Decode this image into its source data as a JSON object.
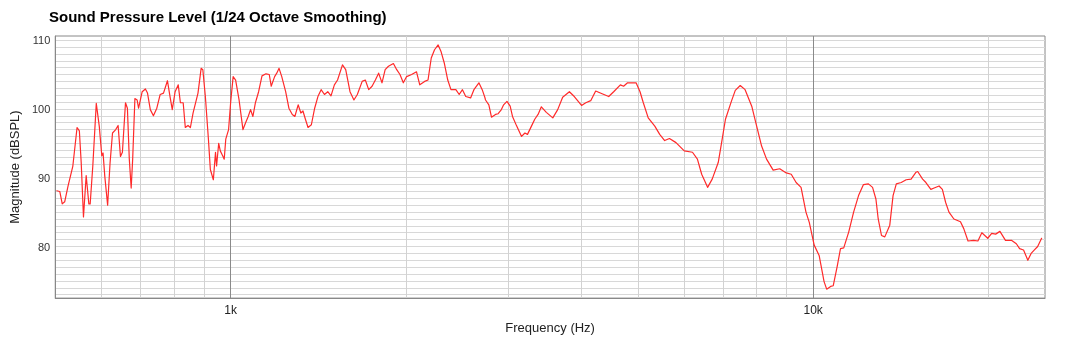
{
  "chart_data": {
    "type": "line",
    "title": "Sound Pressure Level (1/24 Octave Smoothing)",
    "xlabel": "Frequency (Hz)",
    "ylabel": "Magnitude (dBSPL)",
    "x": [
      503,
      509,
      514,
      519,
      526,
      536,
      545,
      550,
      554,
      559,
      565,
      571,
      574,
      580,
      588,
      595,
      601,
      604,
      608,
      615,
      621,
      627,
      635,
      641,
      647,
      652,
      660,
      665,
      670,
      675,
      679,
      685,
      691,
      695,
      705,
      714,
      720,
      728,
      737,
      747,
      757,
      767,
      779,
      787,
      794,
      803,
      813,
      820,
      829,
      836,
      845,
      853,
      862,
      879,
      890,
      896,
      905,
      916,
      923,
      934,
      942,
      946,
      954,
      960,
      969,
      975,
      981,
      992,
      1000,
      1010,
      1020,
      1034,
      1050,
      1061,
      1072,
      1082,
      1092,
      1103,
      1117,
      1132,
      1150,
      1165,
      1174,
      1190,
      1200,
      1211,
      1224,
      1243,
      1259,
      1276,
      1289,
      1306,
      1320,
      1331,
      1344,
      1358,
      1376,
      1394,
      1412,
      1430,
      1449,
      1468,
      1487,
      1507,
      1526,
      1556,
      1576,
      1603,
      1628,
      1650,
      1682,
      1703,
      1726,
      1749,
      1772,
      1795,
      1819,
      1842,
      1866,
      1903,
      1928,
      1953,
      1979,
      2005,
      2045,
      2085,
      2112,
      2153,
      2182,
      2210,
      2239,
      2271,
      2298,
      2328,
      2359,
      2389,
      2436,
      2468,
      2500,
      2533,
      2582,
      2616,
      2668,
      2703,
      2731,
      2739,
      2775,
      2804,
      2849,
      2879,
      2916,
      2942,
      2981,
      3019,
      3047,
      3098,
      3158,
      3200,
      3233,
      3284,
      3327,
      3371,
      3415,
      3483,
      3573,
      3643,
      3715,
      3815,
      3890,
      4003,
      4071,
      4151,
      4233,
      4342,
      4457,
      4545,
      4667,
      4727,
      4801,
      4966,
      5044,
      5110,
      5210,
      5347,
      5452,
      5560,
      5666,
      5815,
      6008,
      6206,
      6328,
      6436,
      6588,
      6709,
      6871,
      6979,
      7070,
      7237,
      7350,
      7495,
      7641,
      7844,
      7998,
      8156,
      8317,
      8537,
      8762,
      8992,
      9169,
      9348,
      9532,
      9719,
      9847,
      10040,
      10238,
      10440,
      10548,
      10714,
      10826,
      10996,
      11140,
      11284,
      11507,
      11733,
      11964,
      12199,
      12440,
      12646,
      12814,
      12931,
      13100,
      13272,
      13536,
      13713,
      13890,
      14163,
      14442,
      14727,
      15017,
      15115,
      15412,
      15614,
      15922,
      16130,
      16448,
      16663,
      16882,
      17103,
      17440,
      17899,
      18133,
      18442,
      18854,
      19175,
      19477,
      19937,
      20251,
      20569,
      20920,
      21386,
      21892,
      22323,
      22612,
      22968,
      23360,
      23666,
      23976,
      24285,
      24667
    ],
    "series": [
      {
        "color": "#ff2a2a",
        "values": [
          88.1,
          88.0,
          86.2,
          86.5,
          88.8,
          91.7,
          97.3,
          96.8,
          92.2,
          84.3,
          90.3,
          86.2,
          86.2,
          91.7,
          100.8,
          97.5,
          93.2,
          93.6,
          90.3,
          86.0,
          92.2,
          96.5,
          97.0,
          97.6,
          93.1,
          93.7,
          100.9,
          100.1,
          92.7,
          88.5,
          92.7,
          101.5,
          101.3,
          100.1,
          102.5,
          102.9,
          102.3,
          99.9,
          99.0,
          100.1,
          102.1,
          102.3,
          104.1,
          101.8,
          99.9,
          102.5,
          103.5,
          100.9,
          100.9,
          97.3,
          97.6,
          97.3,
          99.4,
          102.3,
          105.9,
          105.7,
          101.8,
          95.6,
          91.2,
          89.7,
          93.7,
          91.7,
          95.0,
          93.9,
          93.2,
          92.7,
          95.6,
          97.0,
          100.9,
          104.7,
          104.2,
          101.3,
          97.0,
          98.0,
          98.9,
          99.9,
          98.9,
          100.9,
          102.5,
          104.8,
          105.1,
          105.0,
          103.3,
          104.7,
          105.2,
          105.9,
          104.7,
          102.5,
          100.1,
          99.2,
          98.9,
          100.6,
          99.4,
          99.7,
          98.5,
          97.3,
          97.7,
          100.1,
          101.8,
          102.8,
          102.1,
          102.5,
          101.9,
          103.5,
          104.2,
          106.4,
          105.7,
          102.5,
          101.3,
          102.1,
          104.0,
          104.2,
          102.8,
          103.3,
          104.2,
          105.2,
          103.8,
          105.7,
          106.2,
          106.6,
          105.7,
          105.0,
          103.8,
          104.7,
          105.0,
          105.4,
          103.5,
          104.0,
          104.2,
          107.4,
          108.6,
          109.3,
          108.3,
          106.6,
          104.2,
          102.8,
          102.8,
          102.1,
          102.8,
          101.8,
          101.6,
          102.8,
          103.8,
          102.8,
          101.7,
          101.3,
          100.6,
          98.8,
          99.2,
          99.3,
          99.9,
          100.6,
          101.1,
          100.4,
          98.9,
          97.5,
          96.0,
          96.5,
          96.3,
          97.5,
          98.5,
          99.2,
          100.3,
          99.5,
          98.7,
          99.9,
          101.7,
          102.5,
          101.8,
          100.5,
          100.9,
          101.2,
          102.6,
          102.2,
          101.8,
          102.5,
          103.5,
          103.3,
          103.8,
          103.8,
          102.5,
          100.9,
          98.7,
          97.5,
          96.3,
          95.4,
          95.7,
          95.1,
          93.9,
          93.7,
          92.7,
          90.5,
          88.6,
          89.8,
          92.2,
          95.6,
          98.5,
          101.1,
          102.7,
          103.4,
          102.8,
          100.4,
          97.5,
          94.6,
          92.7,
          91.1,
          91.3,
          90.7,
          90.5,
          89.3,
          88.6,
          85.0,
          83.5,
          80.2,
          78.7,
          74.9,
          73.8,
          74.2,
          74.3,
          77.1,
          79.7,
          79.8,
          82.1,
          85.0,
          87.4,
          89.0,
          89.1,
          88.6,
          86.9,
          84.0,
          81.6,
          81.4,
          83.1,
          87.4,
          89.1,
          89.3,
          89.7,
          89.8,
          90.8,
          90.9,
          89.8,
          89.3,
          88.3,
          88.5,
          88.8,
          88.3,
          86.4,
          85.0,
          84.0,
          83.6,
          82.6,
          80.8,
          80.9,
          80.8,
          82.0,
          81.2,
          81.9,
          81.8,
          82.2,
          80.9,
          80.9,
          80.4,
          79.7,
          79.5,
          78.0,
          79.0,
          79.5,
          80.0,
          81.2
        ]
      }
    ],
    "xlim": [
      500,
      25000
    ],
    "ylim": [
      72.5,
      110.6
    ],
    "xticks": [
      {
        "value": 1000,
        "label": "1k"
      },
      {
        "value": 10000,
        "label": "10k"
      }
    ],
    "yticks": [
      80,
      90,
      100,
      110
    ],
    "log": "x",
    "grid": true,
    "marker": "none",
    "line_style": "solid"
  }
}
